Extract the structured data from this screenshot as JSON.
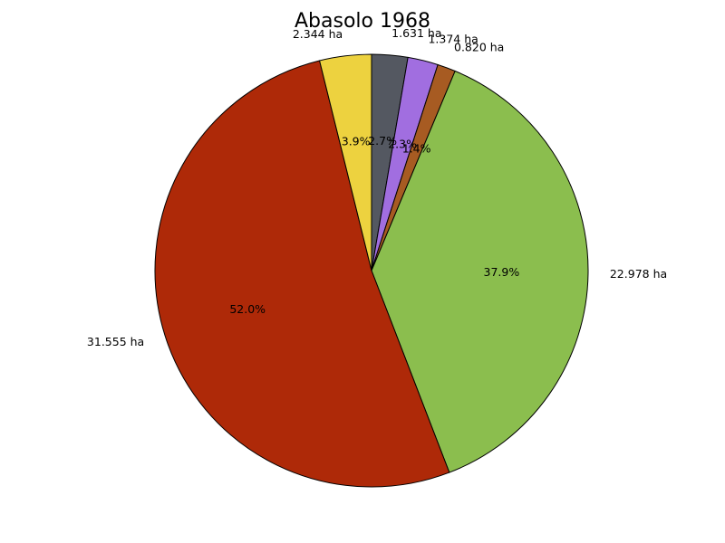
{
  "chart_data": {
    "type": "pie",
    "title": "Abasolo 1968",
    "slices": [
      {
        "value": 1.631,
        "label": "1.631 ha",
        "pct_label": "2.7%",
        "color": "#545861"
      },
      {
        "value": 1.374,
        "label": "1.374 ha",
        "pct_label": "2.3%",
        "color": "#a16ee0"
      },
      {
        "value": 0.82,
        "label": "0.820 ha",
        "pct_label": "1.4%",
        "color": "#a75b22"
      },
      {
        "value": 22.978,
        "label": "22.978 ha",
        "pct_label": "37.9%",
        "color": "#8bbe4e"
      },
      {
        "value": 31.555,
        "label": "31.555 ha",
        "pct_label": "52.0%",
        "color": "#ae2908"
      },
      {
        "value": 2.344,
        "label": "2.344 ha",
        "pct_label": "3.9%",
        "color": "#edd23f"
      }
    ],
    "start_angle_deg": 90,
    "direction": "clockwise",
    "legend": "none"
  }
}
